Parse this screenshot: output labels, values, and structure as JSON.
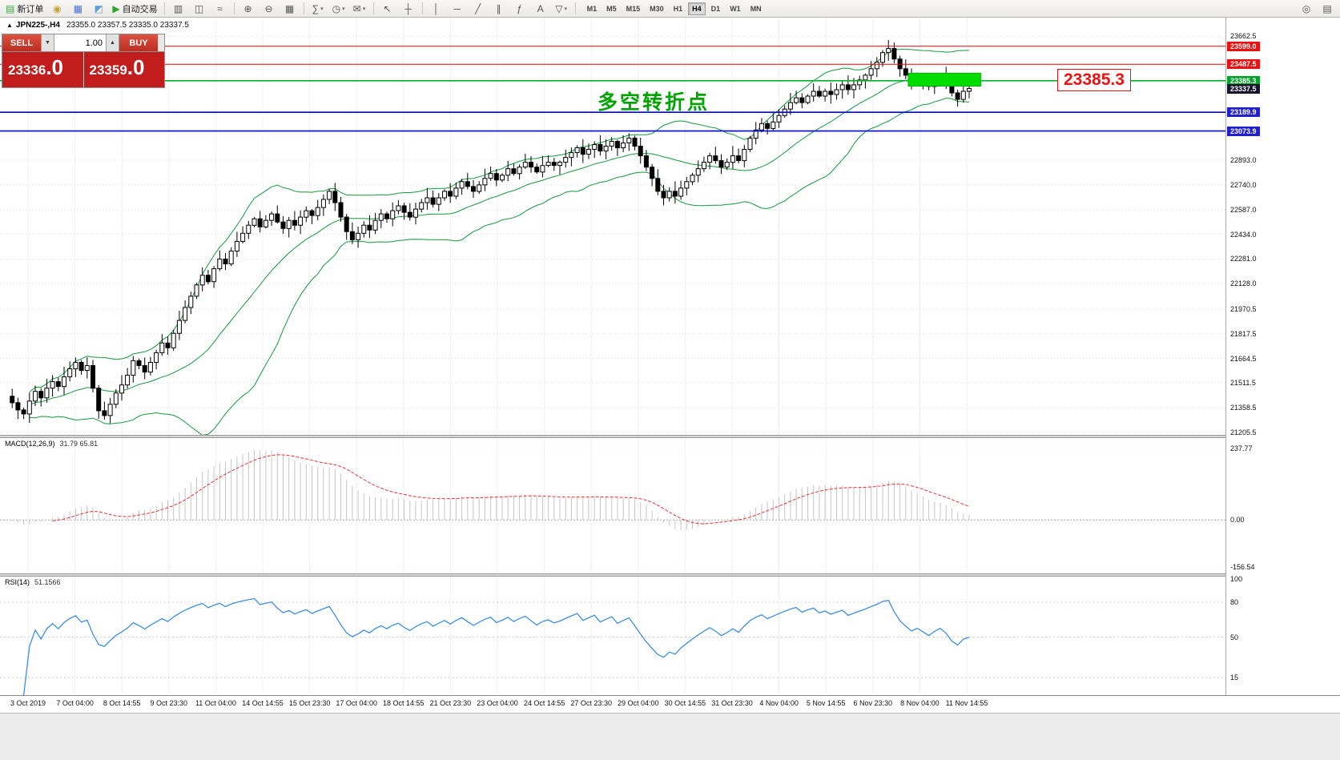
{
  "toolbar": {
    "caret_glyph": "▾",
    "groups": [
      [
        {
          "name": "new-order-button",
          "glyph": "▤",
          "glyph_color": "#3aa53a",
          "label": "新订单"
        },
        {
          "name": "history-center-button",
          "glyph": "◉",
          "glyph_color": "#c9a227"
        },
        {
          "name": "terminal-button",
          "glyph": "▦",
          "glyph_color": "#4a6fd4"
        },
        {
          "name": "strategy-tester-button",
          "glyph": "◩",
          "glyph_color": "#5aa0d8"
        },
        {
          "name": "autotrading-button",
          "glyph": "▶",
          "glyph_color": "#2aa52a",
          "label": "自动交易"
        }
      ],
      [
        {
          "name": "bar-chart-button",
          "glyph": "▥"
        },
        {
          "name": "candlestick-chart-button",
          "glyph": "◫"
        },
        {
          "name": "line-chart-button",
          "glyph": "≈"
        }
      ],
      [
        {
          "name": "zoom-in-button",
          "glyph": "⊕"
        },
        {
          "name": "zoom-out-button",
          "glyph": "⊖"
        },
        {
          "name": "tile-windows-button",
          "glyph": "▦"
        }
      ],
      [
        {
          "name": "indicators-button",
          "glyph": "∑",
          "caret": true
        },
        {
          "name": "periods-button",
          "glyph": "◷",
          "caret": true
        },
        {
          "name": "templates-button",
          "glyph": "✉",
          "caret": true
        }
      ],
      [
        {
          "name": "cursor-button",
          "glyph": "↖"
        },
        {
          "name": "crosshair-button",
          "glyph": "┼"
        }
      ],
      [
        {
          "name": "vertical-line-button",
          "glyph": "│"
        },
        {
          "name": "horizontal-line-button",
          "glyph": "─"
        },
        {
          "name": "trendline-button",
          "glyph": "╱"
        },
        {
          "name": "channel-button",
          "glyph": "∥"
        },
        {
          "name": "fibonacci-button",
          "glyph": "ƒ"
        },
        {
          "name": "text-button",
          "glyph": "A"
        },
        {
          "name": "arrows-button",
          "glyph": "▽",
          "caret": true
        }
      ]
    ],
    "timeframes": {
      "items": [
        "M1",
        "M5",
        "M15",
        "M30",
        "H1",
        "H4",
        "D1",
        "W1",
        "MN"
      ],
      "active": "H4"
    },
    "right_buttons": [
      {
        "name": "search-button",
        "glyph": "◎"
      },
      {
        "name": "layout-button",
        "glyph": "▤"
      }
    ]
  },
  "chart": {
    "marker_glyph": "▲",
    "symbol": "JPN225-,H4",
    "ohlc": "23355.0 23357.5 23335.0 23337.5",
    "trade_panel": {
      "sell_label": "SELL",
      "buy_label": "BUY",
      "volume": "1.00",
      "down_caret": "▼",
      "up_caret": "▲",
      "sell_price": "23336.0",
      "buy_price": "23359.0"
    },
    "annotation_text": "多空转折点",
    "floating_price_label": "23385.3",
    "current_price": {
      "value": 23337.5,
      "label": "23337.5",
      "tag_color": "#15152e"
    },
    "levels": [
      {
        "label": "23599.0",
        "value": 23599.0,
        "line_color": "#f20000",
        "tag_color": "#e81010",
        "width": 1
      },
      {
        "label": "23487.5",
        "value": 23487.5,
        "line_color": "#f20000",
        "tag_color": "#e81010",
        "width": 1
      },
      {
        "label": "23385.3",
        "value": 23385.3,
        "line_color": "#00b428",
        "tag_color": "#00a428",
        "width": 1.6
      },
      {
        "label": "23189.9",
        "value": 23189.9,
        "line_color": "#0000f0",
        "tag_color": "#2020cf",
        "width": 1.6
      },
      {
        "label": "23073.9",
        "value": 23073.9,
        "line_color": "#0000f0",
        "tag_color": "#2020cf",
        "width": 1.6
      }
    ],
    "axis_labels": [
      "23662.5",
      "22893.0",
      "22740.0",
      "22587.0",
      "22434.0",
      "22281.0",
      "22128.0",
      "21970.5",
      "21817.5",
      "21664.5",
      "21511.5",
      "21358.5",
      "21205.5"
    ],
    "highlight_box": {
      "price_top": 23432,
      "price_bottom": 23352,
      "index_from": 157,
      "index_to": 169,
      "color": "#00dc00"
    }
  },
  "chart_data": {
    "type": "candlestick",
    "title": "JPN225- H4 candlestick chart with Bollinger Bands",
    "symbol": "JPN225-",
    "timeframe": "H4",
    "y_range": [
      21205.5,
      23662.5
    ],
    "overlays": [
      "Bollinger Bands (green)"
    ],
    "closes": [
      21430,
      21390,
      21345,
      21320,
      21400,
      21460,
      21420,
      21480,
      21520,
      21490,
      21550,
      21600,
      21640,
      21590,
      21620,
      21480,
      21340,
      21310,
      21380,
      21450,
      21500,
      21560,
      21650,
      21620,
      21580,
      21640,
      21700,
      21760,
      21730,
      21820,
      21900,
      21980,
      22050,
      22120,
      22180,
      22140,
      22220,
      22280,
      22250,
      22330,
      22390,
      22440,
      22490,
      22530,
      22480,
      22520,
      22560,
      22510,
      22470,
      22520,
      22490,
      22540,
      22580,
      22550,
      22600,
      22650,
      22700,
      22630,
      22540,
      22450,
      22400,
      22440,
      22490,
      22460,
      22520,
      22560,
      22530,
      22580,
      22610,
      22570,
      22540,
      22590,
      22630,
      22660,
      22620,
      22660,
      22700,
      22670,
      22720,
      22760,
      22730,
      22700,
      22740,
      22780,
      22810,
      22770,
      22800,
      22840,
      22810,
      22850,
      22880,
      22850,
      22820,
      22860,
      22880,
      22860,
      22880,
      22910,
      22940,
      22970,
      22930,
      22960,
      22990,
      22950,
      22980,
      23010,
      22970,
      23000,
      23030,
      22980,
      22920,
      22850,
      22780,
      22700,
      22660,
      22700,
      22670,
      22720,
      22760,
      22800,
      22840,
      22880,
      22920,
      22890,
      22850,
      22880,
      22920,
      22890,
      22960,
      23030,
      23080,
      23120,
      23090,
      23130,
      23170,
      23210,
      23250,
      23280,
      23250,
      23290,
      23320,
      23290,
      23320,
      23300,
      23330,
      23360,
      23330,
      23360,
      23390,
      23420,
      23460,
      23500,
      23560,
      23585,
      23520,
      23460,
      23420,
      23380,
      23410,
      23380,
      23350,
      23390,
      23420,
      23380,
      23310,
      23270,
      23320,
      23337.5
    ],
    "x_labels": [
      "3 Oct 2019",
      "7 Oct 04:00",
      "8 Oct 14:55",
      "9 Oct 23:30",
      "11 Oct 04:00",
      "14 Oct 14:55",
      "15 Oct 23:30",
      "17 Oct 04:00",
      "18 Oct 14:55",
      "21 Oct 23:30",
      "23 Oct 04:00",
      "24 Oct 14:55",
      "27 Oct 23:30",
      "29 Oct 04:00",
      "30 Oct 14:55",
      "31 Oct 23:30",
      "4 Nov 04:00",
      "5 Nov 14:55",
      "6 Nov 23:30",
      "8 Nov 04:00",
      "11 Nov 14:55"
    ]
  },
  "macd": {
    "title": "MACD(12,26,9)",
    "values": "31.79 65.81",
    "scale": [
      "237.77",
      "0.00",
      "-156.54"
    ],
    "scale_values": [
      237.77,
      0,
      -156.54
    ]
  },
  "rsi": {
    "title": "RSI(14)",
    "value": "51.1566",
    "scale": [
      "100",
      "80",
      "50",
      "15"
    ],
    "scale_values": [
      100,
      80,
      50,
      15
    ],
    "levels": [
      80,
      50,
      15
    ]
  }
}
